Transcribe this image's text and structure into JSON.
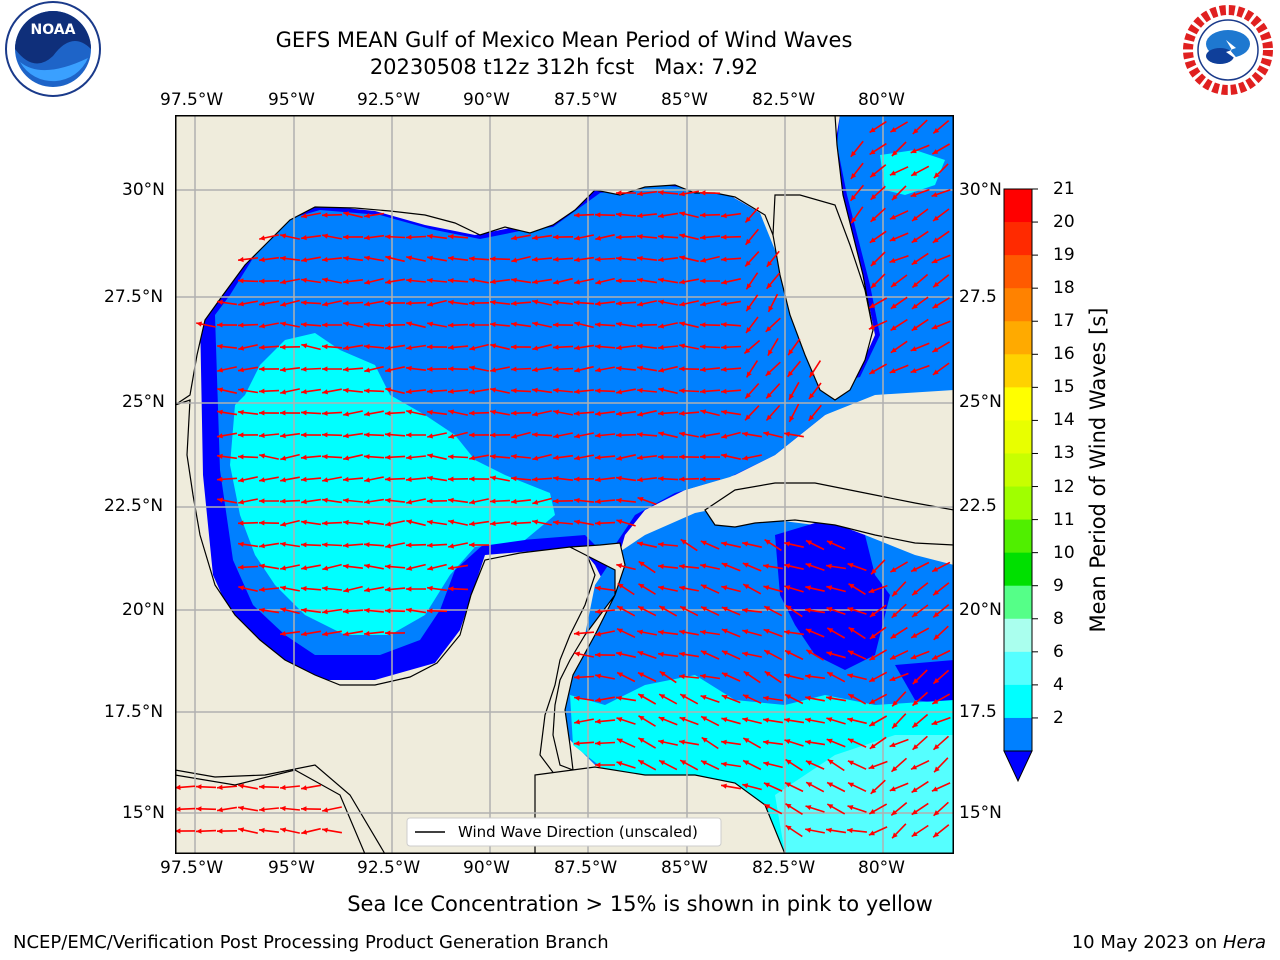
{
  "header": {
    "title_line1": "GEFS MEAN Gulf of Mexico Mean Period of Wind Waves",
    "title_line2": "20230508 t12z 312h fcst   Max: 7.92",
    "logo_left": "NOAA",
    "logo_right": "NATIONAL WEATHER SERVICE"
  },
  "map": {
    "lon_labels": [
      "97.5°W",
      "95°W",
      "92.5°W",
      "90°W",
      "87.5°W",
      "85°W",
      "82.5°W",
      "80°W"
    ],
    "lat_labels": [
      "30°N",
      "27.5°N",
      "25°N",
      "22.5°N",
      "20°N",
      "17.5°N",
      "15°N"
    ],
    "lat_labels_right": [
      "30°N",
      "27.5",
      "25°N",
      "22.5",
      "20°N",
      "17.5",
      "15°N"
    ],
    "legend_label": "Wind Wave Direction (unscaled)",
    "arrow_color": "#ff0000",
    "land_color": "#efecdc"
  },
  "colorbar": {
    "label": "Mean Period of Wind Waves [s]",
    "ticks": [
      "21",
      "20",
      "19",
      "18",
      "17",
      "16",
      "15",
      "14",
      "13",
      "12",
      "11",
      "10",
      "9",
      "8",
      "6",
      "4",
      "2"
    ],
    "colors": [
      "#ff0000",
      "#ff2a00",
      "#ff5a00",
      "#ff8200",
      "#ffaa00",
      "#ffd200",
      "#ffff00",
      "#e8ff00",
      "#c8ff00",
      "#a0ff00",
      "#50ef00",
      "#00e000",
      "#55ff88",
      "#aaffee",
      "#55ffff",
      "#00ffff",
      "#0080ff"
    ],
    "extend_color": "#0000ff"
  },
  "footer": {
    "ice_note": "Sea Ice Concentration > 15% is shown in pink to yellow",
    "producer": "NCEP/EMC/Verification Post Processing Product Generation Branch",
    "date_text": "10 May 2023 on ",
    "machine": "Hera"
  }
}
